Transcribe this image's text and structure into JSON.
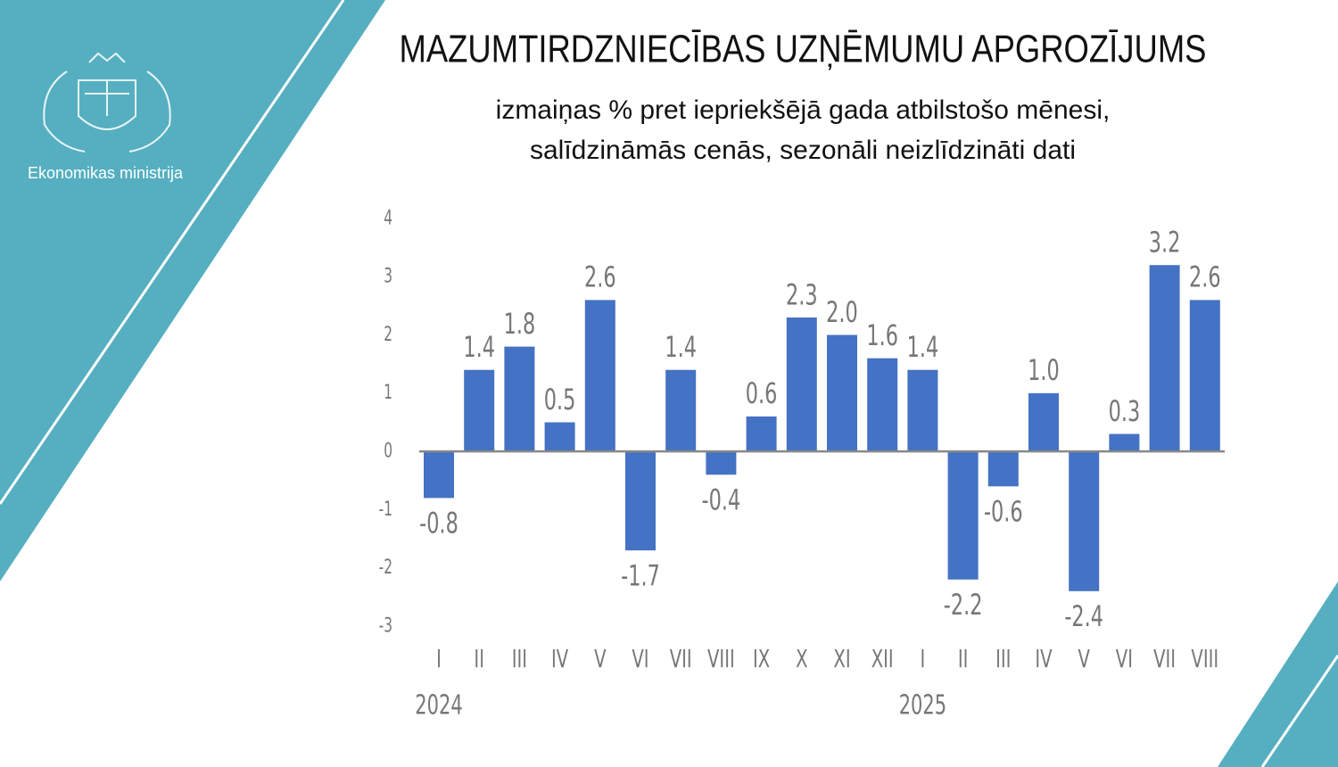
{
  "logo_text": "Ekonomikas ministrija",
  "chart_data": {
    "type": "bar",
    "title": "MAZUMTIRDZNIECĪBAS UZŅĒMUMU APGROZĪJUMS",
    "subtitle": [
      "izmaiņas % pret iepriekšējā gada atbilstošo mēnesi,",
      "salīdzināmās cenās, sezonāli neizlīdzināti dati"
    ],
    "categories": [
      "I",
      "II",
      "III",
      "IV",
      "V",
      "VI",
      "VII",
      "VIII",
      "IX",
      "X",
      "XI",
      "XII",
      "I",
      "II",
      "III",
      "IV",
      "V",
      "VI",
      "VII",
      "VIII"
    ],
    "years": [
      "2024",
      null,
      null,
      null,
      null,
      null,
      null,
      null,
      null,
      null,
      null,
      null,
      "2025",
      null,
      null,
      null,
      null,
      null,
      null,
      null
    ],
    "values": [
      -0.8,
      1.4,
      1.8,
      0.5,
      2.6,
      -1.7,
      1.4,
      -0.4,
      0.6,
      2.3,
      2.0,
      1.6,
      1.4,
      -2.2,
      -0.6,
      1.0,
      -2.4,
      0.3,
      3.2,
      2.6
    ],
    "value_labels": [
      "-0.8",
      "1.4",
      "1.8",
      "0.5",
      "2.6",
      "-1.7",
      "1.4",
      "-0.4",
      "0.6",
      "2.3",
      "2.0",
      "1.6",
      "1.4",
      "-2.2",
      "-0.6",
      "1.0",
      "-2.4",
      "0.3",
      "3.2",
      "2.6"
    ],
    "color": "#4472c4",
    "ylim": [
      -3,
      4
    ],
    "yticks": [
      -3,
      -2,
      -1,
      0,
      1,
      2,
      3,
      4
    ],
    "grid": false
  }
}
